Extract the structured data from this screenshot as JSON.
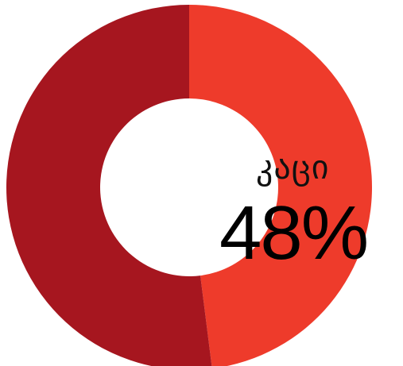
{
  "chart_data": {
    "type": "pie",
    "donut": true,
    "slices": [
      {
        "label": "კაცი",
        "value": 48,
        "color": "#ee3b2b"
      },
      {
        "value": 52,
        "color": "#a6161f"
      }
    ],
    "annotation": {
      "label": "კაცი",
      "value_text": "48%"
    }
  }
}
